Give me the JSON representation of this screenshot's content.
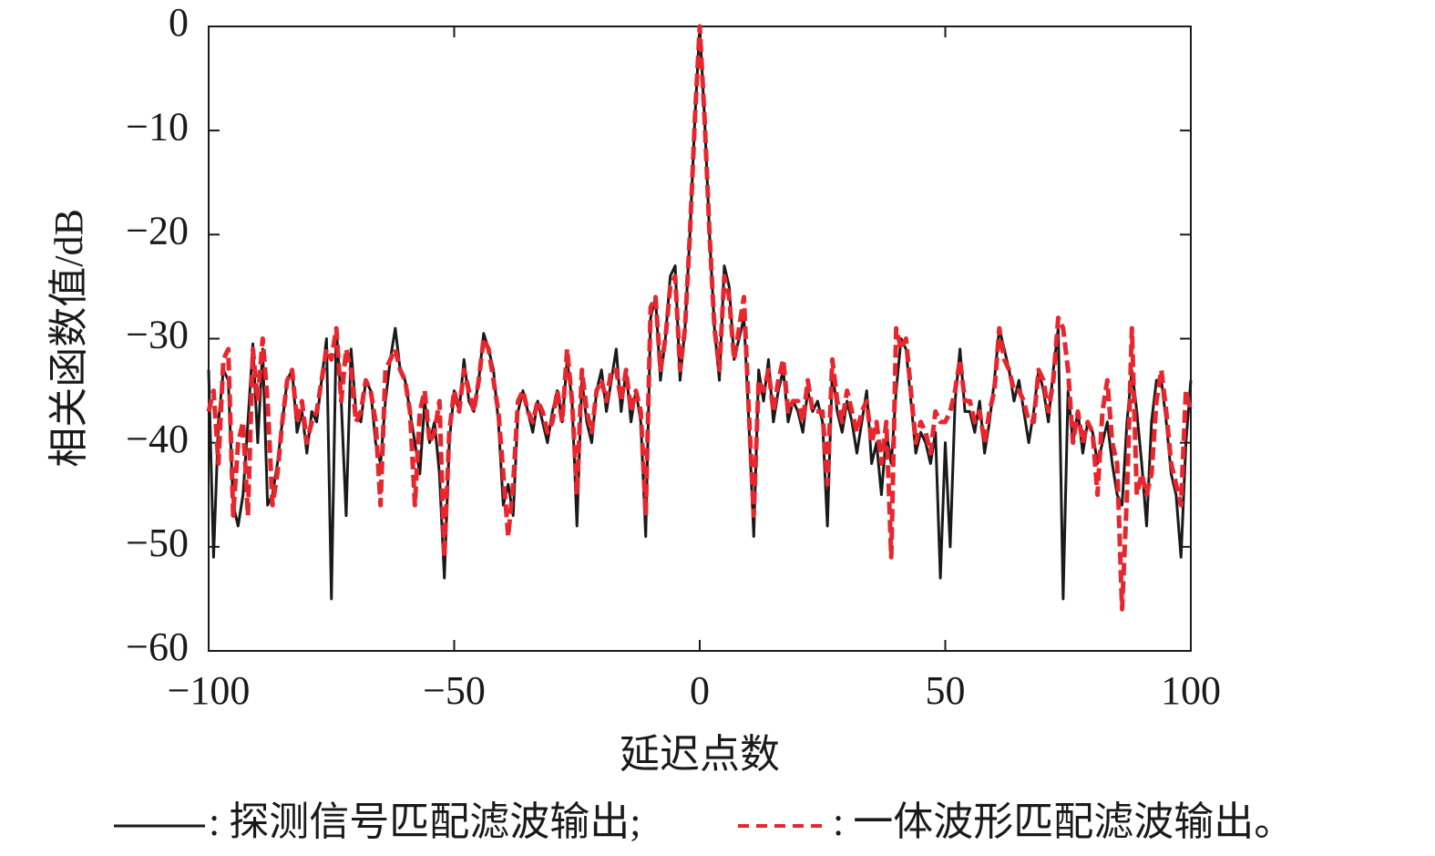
{
  "chart_data": {
    "type": "line",
    "x_label": "延迟点数",
    "y_label": "相关函数值/dB",
    "x": [
      -100,
      -99,
      -98,
      -97,
      -96,
      -95,
      -94,
      -93,
      -92,
      -91,
      -90,
      -89,
      -88,
      -87,
      -86,
      -85,
      -84,
      -83,
      -82,
      -81,
      -80,
      -79,
      -78,
      -77,
      -76,
      -75,
      -74,
      -73,
      -72,
      -71,
      -70,
      -69,
      -68,
      -67,
      -66,
      -65,
      -64,
      -63,
      -62,
      -61,
      -60,
      -59,
      -58,
      -57,
      -56,
      -55,
      -54,
      -53,
      -52,
      -51,
      -50,
      -49,
      -48,
      -47,
      -46,
      -45,
      -44,
      -43,
      -42,
      -41,
      -40,
      -39,
      -38,
      -37,
      -36,
      -35,
      -34,
      -33,
      -32,
      -31,
      -30,
      -29,
      -28,
      -27,
      -26,
      -25,
      -24,
      -23,
      -22,
      -21,
      -20,
      -19,
      -18,
      -17,
      -16,
      -15,
      -14,
      -13,
      -12,
      -11,
      -10,
      -9,
      -8,
      -7,
      -6,
      -5,
      -4,
      -3,
      -2,
      -1,
      0,
      1,
      2,
      3,
      4,
      5,
      6,
      7,
      8,
      9,
      10,
      11,
      12,
      13,
      14,
      15,
      16,
      17,
      18,
      19,
      20,
      21,
      22,
      23,
      24,
      25,
      26,
      27,
      28,
      29,
      30,
      31,
      32,
      33,
      34,
      35,
      36,
      37,
      38,
      39,
      40,
      41,
      42,
      43,
      44,
      45,
      46,
      47,
      48,
      49,
      50,
      51,
      52,
      53,
      54,
      55,
      56,
      57,
      58,
      59,
      60,
      61,
      62,
      63,
      64,
      65,
      66,
      67,
      68,
      69,
      70,
      71,
      72,
      73,
      74,
      75,
      76,
      77,
      78,
      79,
      80,
      81,
      82,
      83,
      84,
      85,
      86,
      87,
      88,
      89,
      90,
      91,
      92,
      93,
      94,
      95,
      96,
      97,
      98,
      99,
      100
    ],
    "series": [
      {
        "name": "探测信号匹配滤波输出",
        "color": "#1a1a1a",
        "style": "solid",
        "values": [
          -33,
          -51,
          -38,
          -33,
          -34,
          -46,
          -48,
          -45,
          -38,
          -30.5,
          -40,
          -31,
          -46,
          -45,
          -42,
          -38,
          -34,
          -33,
          -39,
          -37,
          -41,
          -37,
          -38,
          -34,
          -30,
          -55,
          -29,
          -36,
          -47,
          -31,
          -37,
          -38,
          -34,
          -35,
          -40,
          -42,
          -36,
          -32,
          -29,
          -33,
          -34,
          -37,
          -40,
          -43,
          -36,
          -40,
          -38,
          -43,
          -53,
          -40,
          -35,
          -37,
          -32,
          -36,
          -37,
          -34,
          -29.5,
          -31,
          -33,
          -38,
          -46,
          -44,
          -47,
          -37,
          -35,
          -37,
          -39,
          -36,
          -38,
          -40,
          -37,
          -35,
          -38,
          -32,
          -36,
          -48,
          -34,
          -38,
          -40,
          -35,
          -33,
          -37,
          -34,
          -31,
          -37,
          -33,
          -38,
          -35,
          -38,
          -49,
          -28,
          -26,
          -34,
          -30,
          -24,
          -23,
          -34,
          -29,
          -20,
          -9,
          0,
          -9,
          -20,
          -29,
          -34,
          -23,
          -25,
          -32,
          -30,
          -28,
          -38,
          -49,
          -33,
          -36,
          -32,
          -38,
          -35,
          -33,
          -38,
          -36,
          -37,
          -39,
          -35,
          -37,
          -36,
          -38,
          -48,
          -33,
          -37,
          -39,
          -36,
          -38,
          -41,
          -38,
          -35,
          -42,
          -40,
          -45,
          -39,
          -42,
          -35,
          -30,
          -31,
          -36,
          -41,
          -39,
          -40,
          -42,
          -39,
          -53,
          -40,
          -50,
          -36,
          -31,
          -37,
          -37,
          -39,
          -36,
          -41,
          -38,
          -34,
          -29,
          -31,
          -33,
          -36,
          -34,
          -37,
          -40,
          -37,
          -33,
          -35,
          -38,
          -33,
          -29,
          -55,
          -35,
          -40,
          -37,
          -41,
          -38,
          -39,
          -42,
          -40,
          -38,
          -42,
          -45,
          -46,
          -38,
          -33,
          -37,
          -42,
          -48,
          -38,
          -34,
          -34,
          -38,
          -43,
          -45,
          -51,
          -40,
          -34
        ]
      },
      {
        "name": "一体波形匹配滤波输出",
        "color": "#e8262e",
        "style": "dashed",
        "values": [
          -37,
          -35,
          -42,
          -32,
          -31,
          -47,
          -40,
          -38,
          -47,
          -31,
          -36,
          -30,
          -36,
          -46,
          -43,
          -38,
          -34,
          -33,
          -38,
          -36,
          -40,
          -38,
          -37,
          -34,
          -31,
          -32,
          -29,
          -36,
          -31,
          -33,
          -38,
          -37,
          -34,
          -35,
          -38,
          -46,
          -33,
          -32,
          -31,
          -33,
          -34,
          -37,
          -46,
          -37,
          -35,
          -40,
          -39,
          -36,
          -51,
          -39,
          -35,
          -37,
          -33,
          -35,
          -37,
          -34,
          -30,
          -31,
          -34,
          -37,
          -43,
          -49,
          -44,
          -36,
          -35,
          -37,
          -38,
          -36,
          -37,
          -39,
          -38,
          -35,
          -38,
          -31,
          -36,
          -45,
          -33,
          -37,
          -39,
          -35,
          -34,
          -36,
          -33,
          -33,
          -36,
          -33,
          -37,
          -35,
          -37,
          -47,
          -27,
          -26,
          -33,
          -30,
          -25,
          -24,
          -33,
          -29,
          -20,
          -9,
          0,
          -9,
          -20,
          -29,
          -33,
          -24,
          -26,
          -32,
          -29,
          -26,
          -37,
          -47,
          -34,
          -35,
          -33,
          -37,
          -34,
          -32,
          -37,
          -36,
          -36,
          -38,
          -34,
          -37,
          -37,
          -37,
          -44,
          -32,
          -36,
          -38,
          -35,
          -37,
          -39,
          -37,
          -36,
          -40,
          -38,
          -42,
          -38,
          -51,
          -29,
          -31,
          -30,
          -35,
          -40,
          -38,
          -39,
          -41,
          -37,
          -38,
          -38,
          -37,
          -35,
          -32,
          -36,
          -36,
          -38,
          -37,
          -40,
          -37,
          -35,
          -29,
          -32,
          -33,
          -35,
          -35,
          -36,
          -38,
          -38,
          -33,
          -34,
          -37,
          -34,
          -28,
          -29,
          -33,
          -40,
          -37,
          -40,
          -38,
          -39,
          -45,
          -37,
          -34,
          -40,
          -42,
          -56,
          -45,
          -29,
          -45,
          -43,
          -45,
          -43,
          -36,
          -33,
          -37,
          -42,
          -44,
          -46,
          -35,
          -37
        ]
      }
    ],
    "legend_punctuation": [
      ":",
      ";",
      ":",
      "。"
    ],
    "xlim": [
      -100,
      100
    ],
    "xticks": [
      {
        "value": -100,
        "label": "−100"
      },
      {
        "value": -50,
        "label": "−50"
      },
      0,
      50,
      100
    ],
    "ylim": [
      -60,
      0
    ],
    "yticks": [
      {
        "value": -60,
        "label": "−60"
      },
      {
        "value": -50,
        "label": "−50"
      },
      {
        "value": -40,
        "label": "−40"
      },
      {
        "value": -30,
        "label": "−30"
      },
      {
        "value": -20,
        "label": "−20"
      },
      {
        "value": -10,
        "label": "−10"
      },
      0
    ],
    "grid": false
  }
}
